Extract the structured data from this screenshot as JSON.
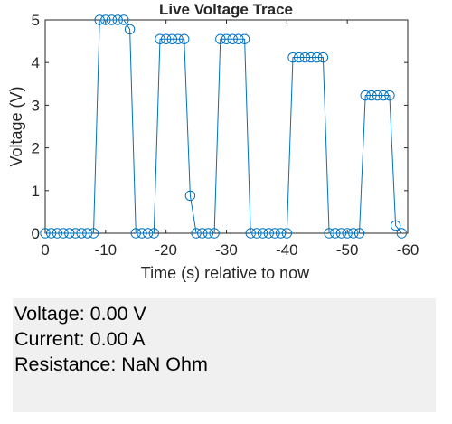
{
  "chart_data": {
    "type": "line",
    "title": "Live Voltage Trace",
    "xlabel": "Time (s) relative to now",
    "ylabel": "Voltage (V)",
    "xlim": [
      0,
      -60
    ],
    "ylim": [
      0,
      5
    ],
    "xticks": [
      "0",
      "-10",
      "-20",
      "-30",
      "-40",
      "-50",
      "-60"
    ],
    "yticks": [
      "0",
      "1",
      "2",
      "3",
      "4",
      "5"
    ],
    "grid": false,
    "marker": "circle",
    "color": "#0072BD",
    "series": [
      {
        "x": [
          0,
          -1,
          -2,
          -3,
          -4,
          -5,
          -6,
          -7,
          -8,
          -9,
          -10,
          -11,
          -12,
          -13,
          -14,
          -15,
          -16,
          -17,
          -18,
          -19,
          -20,
          -21,
          -22,
          -23,
          -24,
          -25,
          -26,
          -27,
          -28,
          -29,
          -30,
          -31,
          -32,
          -33,
          -34,
          -35,
          -36,
          -37,
          -38,
          -39,
          -40,
          -41,
          -42,
          -43,
          -44,
          -45,
          -46,
          -47,
          -48,
          -49,
          -50,
          -51,
          -52,
          -53,
          -54,
          -55,
          -56,
          -57,
          -58,
          -59
        ],
        "y": [
          0,
          0,
          0,
          0,
          0,
          0,
          0,
          0,
          0,
          5,
          5,
          5,
          5,
          5,
          4.78,
          0,
          0,
          0,
          0,
          4.55,
          4.55,
          4.55,
          4.55,
          4.55,
          0.88,
          0,
          0,
          0,
          0,
          4.55,
          4.55,
          4.55,
          4.55,
          4.55,
          0,
          0,
          0,
          0,
          0,
          0,
          0,
          4.12,
          4.12,
          4.12,
          4.12,
          4.12,
          4.12,
          0,
          0,
          0,
          0,
          0,
          0,
          3.23,
          3.23,
          3.23,
          3.23,
          3.23,
          0.18,
          0
        ]
      }
    ]
  },
  "readout": {
    "voltage": "Voltage: 0.00 V",
    "current": "Current: 0.00 A",
    "resistance": "Resistance: NaN Ohm"
  }
}
